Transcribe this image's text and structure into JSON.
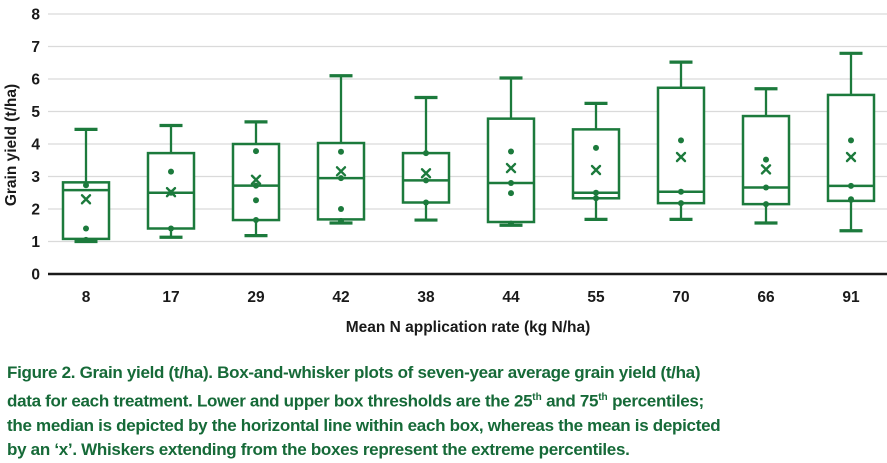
{
  "figure": {
    "caption_lines": [
      [
        {
          "text": "Figure 2. Grain yield (t/ha). Box-and-whisker plots of seven-year average grain yield (t/ha)"
        }
      ],
      [
        {
          "text": "data for each treatment. Lower and upper box thresholds are the 25"
        },
        {
          "text": "th",
          "sup": true
        },
        {
          "text": " and 75"
        },
        {
          "text": "th",
          "sup": true
        },
        {
          "text": " percentiles;"
        }
      ],
      [
        {
          "text": "the median is depicted by the horizontal line within each box, whereas the mean is depicted"
        }
      ],
      [
        {
          "text": "by an ‘x’. Whiskers extending from the boxes represent the extreme percentiles."
        }
      ]
    ]
  },
  "chart_data": {
    "type": "boxplot",
    "title": "",
    "xlabel": "Mean N application rate (kg N/ha)",
    "ylabel": "Grain yield (t/ha)",
    "ylim": [
      0,
      8
    ],
    "ytick_interval": 1,
    "grid": "horizontal-only",
    "legend": "none",
    "categories": [
      "8",
      "17",
      "29",
      "42",
      "38",
      "44",
      "55",
      "70",
      "66",
      "91"
    ],
    "series": [
      {
        "category": "8",
        "whisker_low": 1.0,
        "q1": 1.08,
        "median": 2.58,
        "q3": 2.82,
        "whisker_high": 4.45,
        "mean": 2.3,
        "points": [
          2.73,
          1.4,
          1.05
        ]
      },
      {
        "category": "17",
        "whisker_low": 1.13,
        "q1": 1.4,
        "median": 2.5,
        "q3": 3.72,
        "whisker_high": 4.57,
        "mean": 2.52,
        "points": [
          3.15,
          2.5,
          1.4
        ]
      },
      {
        "category": "29",
        "whisker_low": 1.18,
        "q1": 1.66,
        "median": 2.72,
        "q3": 4.0,
        "whisker_high": 4.68,
        "mean": 2.9,
        "points": [
          3.78,
          2.72,
          2.27,
          1.66
        ]
      },
      {
        "category": "42",
        "whisker_low": 1.57,
        "q1": 1.68,
        "median": 2.95,
        "q3": 4.03,
        "whisker_high": 6.1,
        "mean": 3.16,
        "points": [
          3.76,
          2.95,
          2.0,
          1.63
        ]
      },
      {
        "category": "38",
        "whisker_low": 1.66,
        "q1": 2.2,
        "median": 2.88,
        "q3": 3.72,
        "whisker_high": 5.43,
        "mean": 3.1,
        "points": [
          3.72,
          2.88,
          2.2
        ]
      },
      {
        "category": "44",
        "whisker_low": 1.5,
        "q1": 1.6,
        "median": 2.8,
        "q3": 4.78,
        "whisker_high": 6.03,
        "mean": 3.26,
        "points": [
          3.77,
          2.8,
          2.49,
          1.55
        ]
      },
      {
        "category": "55",
        "whisker_low": 1.68,
        "q1": 2.33,
        "median": 2.5,
        "q3": 4.45,
        "whisker_high": 5.25,
        "mean": 3.2,
        "points": [
          3.88,
          2.5,
          2.33
        ]
      },
      {
        "category": "70",
        "whisker_low": 1.68,
        "q1": 2.18,
        "median": 2.53,
        "q3": 5.73,
        "whisker_high": 6.52,
        "mean": 3.6,
        "points": [
          4.11,
          2.53,
          2.18
        ]
      },
      {
        "category": "66",
        "whisker_low": 1.57,
        "q1": 2.15,
        "median": 2.66,
        "q3": 4.86,
        "whisker_high": 5.7,
        "mean": 3.22,
        "points": [
          3.52,
          2.66,
          2.15
        ]
      },
      {
        "category": "91",
        "whisker_low": 1.33,
        "q1": 2.25,
        "median": 2.71,
        "q3": 5.51,
        "whisker_high": 6.79,
        "mean": 3.6,
        "points": [
          4.11,
          2.71,
          2.3,
          2.28
        ]
      }
    ],
    "colors": {
      "box_green": "#1c7a3c",
      "axis_black": "#1a1a1a",
      "gridline_gray": "#dadada",
      "caption_green": "#166a38",
      "background": "#ffffff"
    }
  }
}
